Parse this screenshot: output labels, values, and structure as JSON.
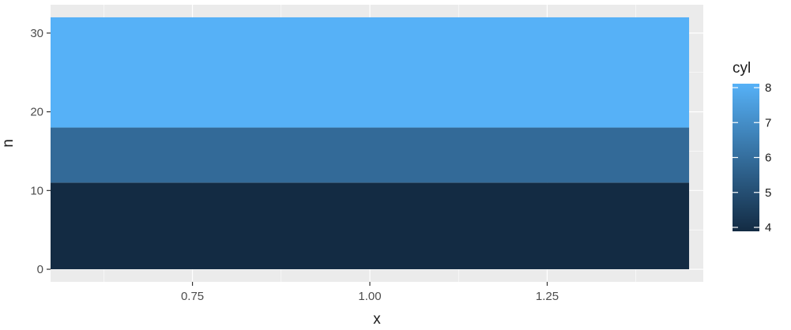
{
  "chart_data": {
    "type": "bar",
    "title": "",
    "xlabel": "x",
    "ylabel": "n",
    "xlim": [
      0.55,
      1.47
    ],
    "ylim": [
      -1.6,
      33.6
    ],
    "x_ticks": [
      0.75,
      1.0,
      1.25
    ],
    "x_tick_labels": [
      "0.75",
      "1.00",
      "1.25"
    ],
    "y_ticks": [
      0,
      10,
      20,
      30
    ],
    "y_tick_labels": [
      "0",
      "10",
      "20",
      "30"
    ],
    "grid": true,
    "bar": {
      "x": 1,
      "width": 0.9
    },
    "series": [
      {
        "cyl": 4,
        "value": 11,
        "color": "#132B43"
      },
      {
        "cyl": 6,
        "value": 7,
        "color": "#336A98"
      },
      {
        "cyl": 8,
        "value": 14,
        "color": "#56B1F7"
      }
    ],
    "legend": {
      "title": "cyl",
      "position": "right",
      "type": "colorbar",
      "range": [
        4,
        8
      ],
      "breaks": [
        4,
        5,
        6,
        7,
        8
      ],
      "labels": [
        "4",
        "5",
        "6",
        "7",
        "8"
      ],
      "low_color": "#132B43",
      "high_color": "#56B1F7"
    },
    "panel_background": "#EBEBEB",
    "gridline_color": "#FFFFFF"
  }
}
